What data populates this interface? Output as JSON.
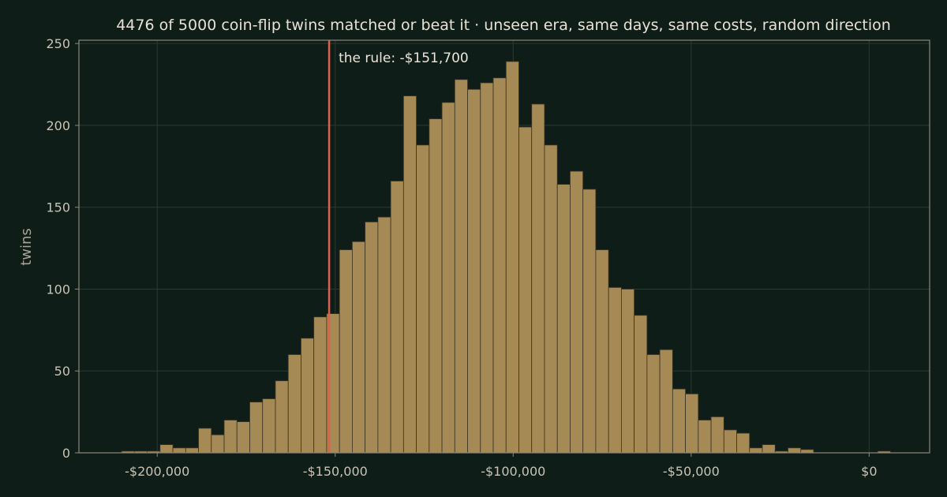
{
  "chart_data": {
    "type": "bar",
    "title": "4476 of 5000 coin-flip twins matched or beat it  ·  unseen era, same days, same costs, random direction",
    "ylabel": "twins",
    "xlabel": "",
    "xlim": [
      -222000,
      17000
    ],
    "ylim": [
      0,
      252
    ],
    "x_ticks": [
      -200000,
      -150000,
      -100000,
      -50000,
      0
    ],
    "x_tick_labels": [
      "-$200,000",
      "-$150,000",
      "-$100,000",
      "-$50,000",
      "$0"
    ],
    "y_ticks": [
      0,
      50,
      100,
      150,
      200,
      250
    ],
    "y_tick_labels": [
      "0",
      "50",
      "100",
      "150",
      "200",
      "250"
    ],
    "bin_start": -210000,
    "bin_width": 3600,
    "values": [
      1,
      1,
      1,
      5,
      3,
      3,
      15,
      11,
      20,
      19,
      31,
      33,
      44,
      60,
      70,
      83,
      85,
      124,
      129,
      141,
      144,
      166,
      218,
      188,
      204,
      214,
      228,
      222,
      226,
      229,
      239,
      199,
      213,
      188,
      164,
      172,
      161,
      124,
      101,
      100,
      84,
      60,
      63,
      39,
      36,
      20,
      22,
      14,
      12,
      3,
      5,
      1,
      3,
      2,
      0,
      0,
      0,
      0,
      0,
      1,
      0
    ],
    "rule": {
      "value": -151700,
      "label": "the rule: -$151,700",
      "color": "#d9624e"
    },
    "grid": true,
    "bar_color": "#a68a55",
    "background": "#0f1d18"
  }
}
